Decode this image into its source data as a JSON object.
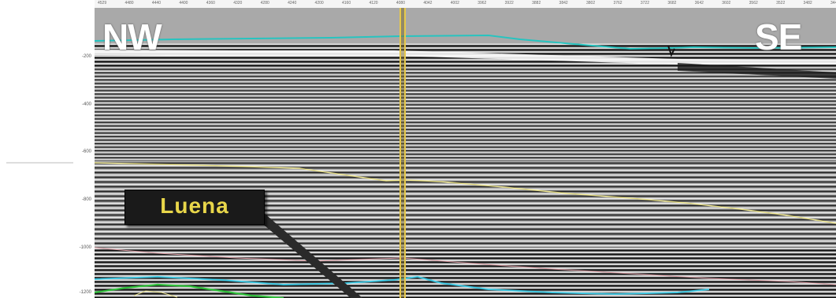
{
  "labels": {
    "left_direction": "NW",
    "right_direction": "SE",
    "horizon_name": "Luena"
  },
  "axis": {
    "y_ticks": [
      "-200",
      "-400",
      "-600",
      "-800",
      "-1000",
      "-1200"
    ],
    "x_ticks": [
      "4529",
      "4480",
      "4440",
      "4400",
      "4360",
      "4320",
      "4280",
      "4240",
      "4200",
      "4160",
      "4120",
      "4080",
      "4042",
      "4002",
      "3962",
      "3922",
      "3882",
      "3842",
      "3802",
      "3762",
      "3722",
      "3682",
      "3642",
      "3602",
      "3562",
      "3522",
      "3482",
      "3442"
    ]
  },
  "colors": {
    "seafloor_horizon": "#27c4c0",
    "horizon_yellow": "#e8e08a",
    "horizon_pink": "#e0a0a8",
    "horizon_cyan_deep": "#3ec6e0",
    "horizon_green": "#2fbf3a",
    "well_line": "#e6c84a",
    "label_text": "#e8d64a"
  }
}
